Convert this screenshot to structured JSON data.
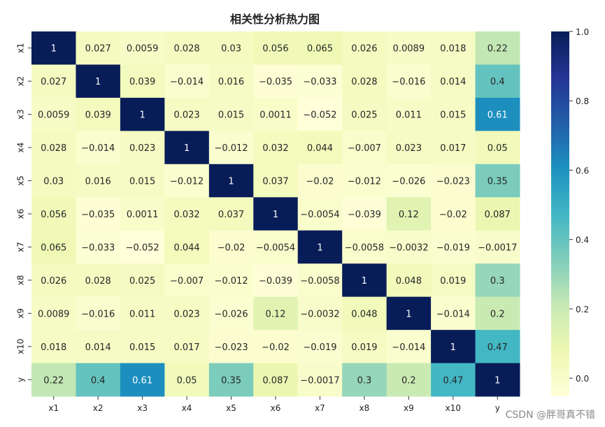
{
  "chart_data": {
    "type": "heatmap",
    "title": "相关性分析热力图",
    "row_labels": [
      "x1",
      "x2",
      "x3",
      "x4",
      "x5",
      "x6",
      "x7",
      "x8",
      "x9",
      "x10",
      "y"
    ],
    "col_labels": [
      "x1",
      "x2",
      "x3",
      "x4",
      "x5",
      "x6",
      "x7",
      "x8",
      "x9",
      "x10",
      "y"
    ],
    "values": [
      [
        1,
        0.027,
        0.0059,
        0.028,
        0.03,
        0.056,
        0.065,
        0.026,
        0.0089,
        0.018,
        0.22
      ],
      [
        0.027,
        1,
        0.039,
        -0.014,
        0.016,
        -0.035,
        -0.033,
        0.028,
        -0.016,
        0.014,
        0.4
      ],
      [
        0.0059,
        0.039,
        1,
        0.023,
        0.015,
        0.0011,
        -0.052,
        0.025,
        0.011,
        0.015,
        0.61
      ],
      [
        0.028,
        -0.014,
        0.023,
        1,
        -0.012,
        0.032,
        0.044,
        -0.007,
        0.023,
        0.017,
        0.05
      ],
      [
        0.03,
        0.016,
        0.015,
        -0.012,
        1,
        0.037,
        -0.02,
        -0.012,
        -0.026,
        -0.023,
        0.35
      ],
      [
        0.056,
        -0.035,
        0.0011,
        0.032,
        0.037,
        1,
        -0.0054,
        -0.039,
        0.12,
        -0.02,
        0.087
      ],
      [
        0.065,
        -0.033,
        -0.052,
        0.044,
        -0.02,
        -0.0054,
        1,
        -0.0058,
        -0.0032,
        -0.019,
        -0.0017
      ],
      [
        0.026,
        0.028,
        0.025,
        -0.007,
        -0.012,
        -0.039,
        -0.0058,
        1,
        0.048,
        0.019,
        0.3
      ],
      [
        0.0089,
        -0.016,
        0.011,
        0.023,
        -0.026,
        0.12,
        -0.0032,
        0.048,
        1,
        -0.014,
        0.2
      ],
      [
        0.018,
        0.014,
        0.015,
        0.017,
        -0.023,
        -0.02,
        -0.019,
        0.019,
        -0.014,
        1,
        0.47
      ],
      [
        0.22,
        0.4,
        0.61,
        0.05,
        0.35,
        0.087,
        -0.0017,
        0.3,
        0.2,
        0.47,
        1
      ]
    ],
    "vmin": -0.052,
    "vmax": 1.0,
    "colormap": "YlGnBu",
    "colorbar_ticks": [
      0.0,
      0.2,
      0.4,
      0.6,
      0.8,
      1.0
    ],
    "colorbar_tick_labels": [
      "0.0",
      "0.2",
      "0.4",
      "0.6",
      "0.8",
      "1.0"
    ],
    "grid": false
  },
  "watermark": "CSDN @胖哥真不错"
}
